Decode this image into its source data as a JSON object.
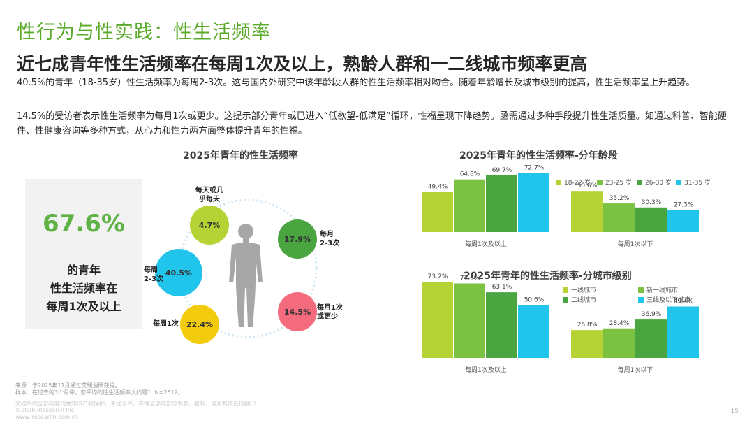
{
  "header": {
    "section_title": "性行为与性实践：性生活频率",
    "headline": "近七成青年性生活频率在每周1次及以上，熟龄人群和一二线城市频率更高",
    "paragraph1": " 40.5%的青年（18-35岁）性生活频率为每周2-3次。这与国内外研究中该年龄段人群的性生活频率相对吻合。随着年龄增长及城市级别的提高，性生活频率呈上升趋势。",
    "paragraph2": "14.5%的受访者表示性生活频率为每月1次或更少。这提示部分青年或已进入“低欲望-低满足”循环，性福呈现下降趋势。亟需通过多种手段提升性生活质量。如通过科普、智能硬件、性健康咨询等多种方式，从心力和性力两方面整体提升青年的性福。"
  },
  "highlight": {
    "percent": "67.6%",
    "text": "的青年\n性生活频率在\n每周1次及以上"
  },
  "colors": {
    "green_light": "#b5d334",
    "green_mid": "#7cc242",
    "green_dark": "#4aa541",
    "cyan": "#21c4ea",
    "yellow": "#f3cb0d",
    "pink": "#f36b7d",
    "ring": "#cde3f2"
  },
  "chart_data": [
    {
      "type": "pie",
      "title": "2025年青年的性生活频率",
      "slices": [
        {
          "label": "每天或几\n乎每天",
          "value": 4.7,
          "value_label": "4.7%",
          "color": "#b5d334"
        },
        {
          "label": "每月\n2-3次",
          "value": 17.9,
          "value_label": "17.9%",
          "color": "#4aa541"
        },
        {
          "label": "每月1次\n或更少",
          "value": 14.5,
          "value_label": "14.5%",
          "color": "#f36b7d"
        },
        {
          "label": "每周1次",
          "value": 22.4,
          "value_label": "22.4%",
          "color": "#f3cb0d"
        },
        {
          "label": "每周\n2-3次",
          "value": 40.5,
          "value_label": "40.5%",
          "color": "#21c4ea"
        }
      ]
    },
    {
      "type": "bar",
      "title": "2025年青年的性生活频率-分年龄段",
      "categories": [
        "每周1次及以上",
        "每周1次以下"
      ],
      "series": [
        {
          "name": "18-22 岁",
          "values": [
            49.4,
            50.6
          ],
          "color": "#b5d334"
        },
        {
          "name": "23-25 岁",
          "values": [
            64.8,
            35.2
          ],
          "color": "#7cc242"
        },
        {
          "name": "26-30 岁",
          "values": [
            69.7,
            30.3
          ],
          "color": "#4aa541"
        },
        {
          "name": "31-35 岁",
          "values": [
            72.7,
            27.3
          ],
          "color": "#21c4ea"
        }
      ],
      "value_suffix": "%",
      "ylim": [
        0,
        80
      ]
    },
    {
      "type": "bar",
      "title": "2025年青年的性生活频率-分城市级别",
      "categories": [
        "每周1次及以上",
        "每周1次以下"
      ],
      "series": [
        {
          "name": "一线城市",
          "values": [
            73.2,
            26.8
          ],
          "color": "#b5d334"
        },
        {
          "name": "新一线城市",
          "values": [
            71.6,
            28.4
          ],
          "color": "#7cc242"
        },
        {
          "name": "二线城市",
          "values": [
            63.1,
            36.9
          ],
          "color": "#4aa541"
        },
        {
          "name": "三线及以下城市",
          "values": [
            50.6,
            49.4
          ],
          "color": "#21c4ea"
        }
      ],
      "value_suffix": "%",
      "ylim": [
        0,
        80
      ]
    }
  ],
  "footer": {
    "source": "来源：于2025年11月通过艾瑞消研获得。",
    "sample": "样本：在过去的3个月中，您平均的性生活频率大约是？ N=2612。",
    "disclaimer": "文档中的全部内容均受知识产权保护，未经允许，不得全部或部分发表、复制、或对其作任何翻印",
    "copyright": "©2026 iResearch Inc.",
    "website": "www.iresearch.com.cn",
    "page_number": "15"
  }
}
